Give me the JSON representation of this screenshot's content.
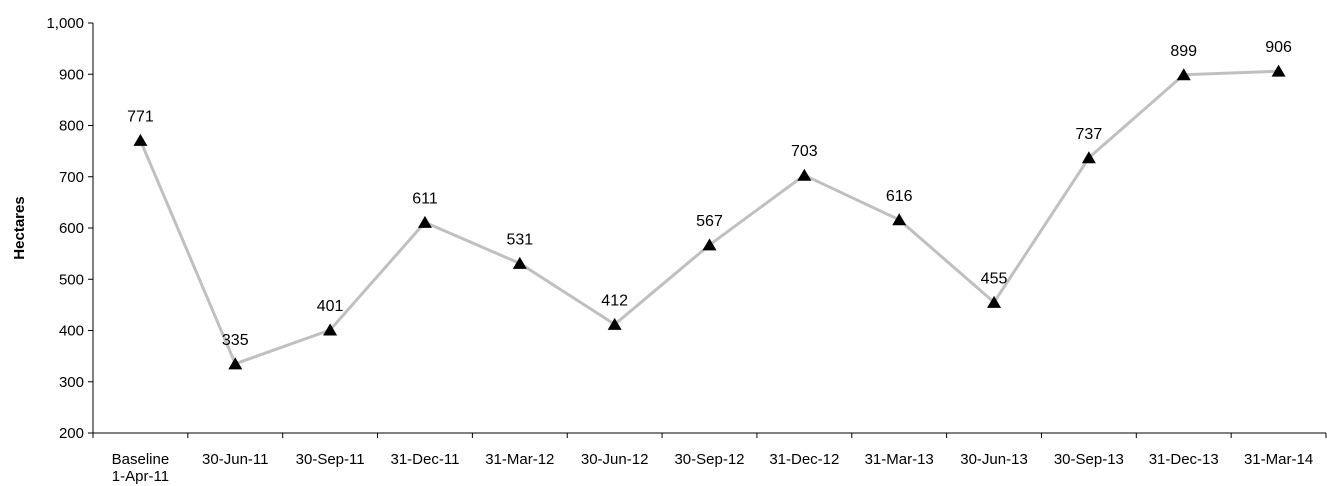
{
  "chart_data": {
    "type": "line",
    "title": "",
    "xlabel": "",
    "ylabel": "Hectares",
    "ylim": [
      200,
      1000
    ],
    "yticks": [
      "200",
      "300",
      "400",
      "500",
      "600",
      "700",
      "800",
      "900",
      "1,000"
    ],
    "grid": false,
    "legend": "none",
    "marker": "triangle",
    "line_color": "#c0c0c0",
    "marker_color": "#000000",
    "categories": [
      [
        "Baseline",
        "1-Apr-11"
      ],
      [
        "30-Jun-11"
      ],
      [
        "30-Sep-11"
      ],
      [
        "31-Dec-11"
      ],
      [
        "31-Mar-12"
      ],
      [
        "30-Jun-12"
      ],
      [
        "30-Sep-12"
      ],
      [
        "31-Dec-12"
      ],
      [
        "31-Mar-13"
      ],
      [
        "30-Jun-13"
      ],
      [
        "30-Sep-13"
      ],
      [
        "31-Dec-13"
      ],
      [
        "31-Mar-14"
      ]
    ],
    "series": [
      {
        "values": [
          771,
          335,
          401,
          611,
          531,
          412,
          567,
          703,
          616,
          455,
          737,
          899,
          906
        ]
      }
    ]
  }
}
